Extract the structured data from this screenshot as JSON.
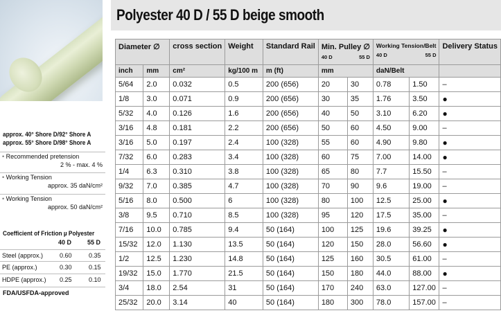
{
  "title": "Polyester 40 D / 55 D beige smooth",
  "shore": [
    "approx. 40° Shore D/92° Shore A",
    "approx. 55° Shore D/98° Shore A"
  ],
  "specs": [
    {
      "label": "Recommended pretension",
      "value": "2 % - max. 4 %"
    },
    {
      "label": "Working Tension",
      "value": "approx. 35 daN/cm²"
    },
    {
      "label": "Working Tension",
      "value": "approx. 50 daN/cm²"
    }
  ],
  "friction": {
    "title": "Coefficient of Friction µ Polyester",
    "col40": "40 D",
    "col55": "55 D",
    "rows": [
      {
        "name": "Steel (approx.)",
        "v40": "0.60",
        "v55": "0.35"
      },
      {
        "name": "PE (approx.)",
        "v40": "0.30",
        "v55": "0.15"
      },
      {
        "name": "HDPE (approx.)",
        "v40": "0.25",
        "v55": "0.10"
      }
    ]
  },
  "fda": "FDA/USFDA-approved",
  "table": {
    "headers": {
      "diameter": "Diameter ∅",
      "cross": "cross section",
      "weight": "Weight",
      "rail": "Standard Rail",
      "pulley": "Min. Pulley ∅",
      "tension": "Working Tension/Belt",
      "status": "Delivery Status",
      "sub40": "40 D",
      "sub55": "55 D"
    },
    "units": {
      "inch": "inch",
      "mm": "mm",
      "cross": "cm²",
      "weight": "kg/100 m",
      "rail": "m (ft)",
      "pulley": "mm",
      "tension": "daN/Belt"
    },
    "rows": [
      [
        "5/64",
        "2.0",
        "0.032",
        "0.5",
        "200 (656)",
        "20",
        "30",
        "0.78",
        "1.50",
        "–"
      ],
      [
        "1/8",
        "3.0",
        "0.071",
        "0.9",
        "200 (656)",
        "30",
        "35",
        "1.76",
        "3.50",
        "●"
      ],
      [
        "5/32",
        "4.0",
        "0.126",
        "1.6",
        "200 (656)",
        "40",
        "50",
        "3.10",
        "6.20",
        "●"
      ],
      [
        "3/16",
        "4.8",
        "0.181",
        "2.2",
        "200 (656)",
        "50",
        "60",
        "4.50",
        "9.00",
        "–"
      ],
      [
        "3/16",
        "5.0",
        "0.197",
        "2.4",
        "100 (328)",
        "55",
        "60",
        "4.90",
        "9.80",
        "●"
      ],
      [
        "7/32",
        "6.0",
        "0.283",
        "3.4",
        "100 (328)",
        "60",
        "75",
        "7.00",
        "14.00",
        "●"
      ],
      [
        "1/4",
        "6.3",
        "0.310",
        "3.8",
        "100 (328)",
        "65",
        "80",
        "7.7",
        "15.50",
        "–"
      ],
      [
        "9/32",
        "7.0",
        "0.385",
        "4.7",
        "100 (328)",
        "70",
        "90",
        "9.6",
        "19.00",
        "–"
      ],
      [
        "5/16",
        "8.0",
        "0.500",
        "6",
        "100 (328)",
        "80",
        "100",
        "12.5",
        "25.00",
        "●"
      ],
      [
        "3/8",
        "9.5",
        "0.710",
        "8.5",
        "100 (328)",
        "95",
        "120",
        "17.5",
        "35.00",
        "–"
      ],
      [
        "7/16",
        "10.0",
        "0.785",
        "9.4",
        "50 (164)",
        "100",
        "125",
        "19.6",
        "39.25",
        "●"
      ],
      [
        "15/32",
        "12.0",
        "1.130",
        "13.5",
        "50 (164)",
        "120",
        "150",
        "28.0",
        "56.60",
        "●"
      ],
      [
        "1/2",
        "12.5",
        "1.230",
        "14.8",
        "50 (164)",
        "125",
        "160",
        "30.5",
        "61.00",
        "–"
      ],
      [
        "19/32",
        "15.0",
        "1.770",
        "21.5",
        "50 (164)",
        "150",
        "180",
        "44.0",
        "88.00",
        "●"
      ],
      [
        "3/4",
        "18.0",
        "2.54",
        "31",
        "50 (164)",
        "170",
        "240",
        "63.0",
        "127.00",
        "–"
      ],
      [
        "25/32",
        "20.0",
        "3.14",
        "40",
        "50 (164)",
        "180",
        "300",
        "78.0",
        "157.00",
        "–"
      ]
    ]
  }
}
